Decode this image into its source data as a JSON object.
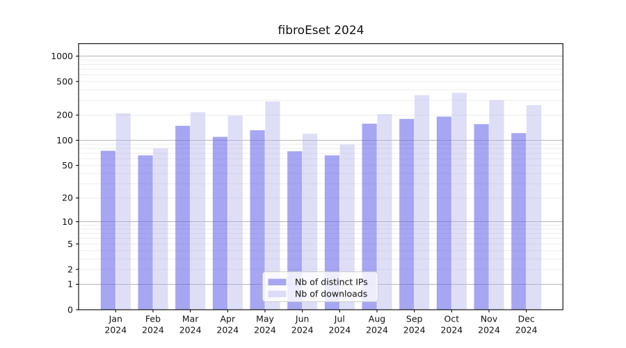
{
  "chart_data": {
    "type": "bar",
    "title": "fibroEset 2024",
    "xlabel": "",
    "ylabel": "",
    "yscale": "log10(1+x)",
    "yticks": [
      0,
      1,
      2,
      5,
      10,
      20,
      50,
      100,
      200,
      500,
      1000
    ],
    "ylim": [
      0,
      1400
    ],
    "categories": [
      "Jan",
      "Feb",
      "Mar",
      "Apr",
      "May",
      "Jun",
      "Jul",
      "Aug",
      "Sep",
      "Oct",
      "Nov",
      "Dec"
    ],
    "category_year": "2024",
    "series": [
      {
        "name": "Nb of distinct IPs",
        "values": [
          75,
          66,
          149,
          110,
          132,
          74,
          66,
          158,
          180,
          192,
          156,
          122
        ],
        "color": "#6565e8",
        "fill_opacity": 0.58,
        "legend_swatch_color": "#a6a6f2"
      },
      {
        "name": "Nb of downloads",
        "values": [
          210,
          80,
          216,
          197,
          290,
          120,
          89,
          205,
          345,
          367,
          300,
          262
        ],
        "color": "#b1b1ec",
        "fill_opacity": 0.42,
        "legend_swatch_color": "#dcdcf8"
      }
    ],
    "grid": {
      "major_lines": [
        1,
        10,
        100,
        1000
      ],
      "minor_lines": [
        2,
        3,
        4,
        5,
        6,
        7,
        8,
        9,
        20,
        30,
        40,
        50,
        60,
        70,
        80,
        90,
        200,
        300,
        400,
        500,
        600,
        700,
        800,
        900
      ],
      "major_color": "#b3b3b3",
      "minor_color": "#eaeaea"
    },
    "legend": {
      "position": "lower-center",
      "border_color": "#cccccc",
      "background": "rgba(255,255,255,0.8)"
    },
    "axis_color": "#000000"
  }
}
